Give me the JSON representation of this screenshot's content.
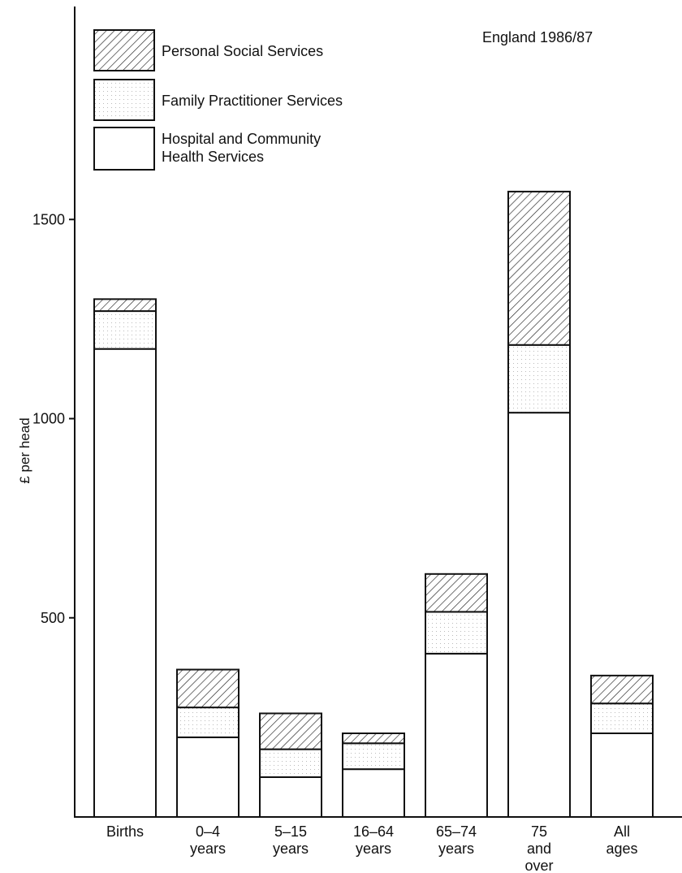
{
  "chart_data": {
    "type": "bar",
    "stacked": true,
    "note": "England 1986/87",
    "ylabel": "£ per head",
    "xlabel": "",
    "ylim": [
      0,
      1960
    ],
    "yticks": [
      500,
      1000,
      1500
    ],
    "categories": [
      [
        "Births"
      ],
      [
        "0–4",
        "years"
      ],
      [
        "5–15",
        "years"
      ],
      [
        "16–64",
        "years"
      ],
      [
        "65–74",
        "years"
      ],
      [
        "75",
        "and",
        "over"
      ],
      [
        "All",
        "ages"
      ]
    ],
    "series": [
      {
        "name": "Hospital and Community Health Services",
        "legend_lines": [
          "Hospital and Community",
          "Health Services"
        ],
        "fill": "plain",
        "values": [
          1175,
          200,
          100,
          120,
          410,
          1015,
          210
        ]
      },
      {
        "name": "Family Practitioner Services",
        "legend_lines": [
          "Family Practitioner Services"
        ],
        "fill": "dotted",
        "values": [
          95,
          75,
          70,
          65,
          105,
          170,
          75
        ]
      },
      {
        "name": "Personal Social Services",
        "legend_lines": [
          "Personal Social Services"
        ],
        "fill": "hatched",
        "values": [
          30,
          95,
          90,
          25,
          95,
          385,
          70
        ]
      }
    ],
    "legend_position": "top-left",
    "grid": false
  }
}
